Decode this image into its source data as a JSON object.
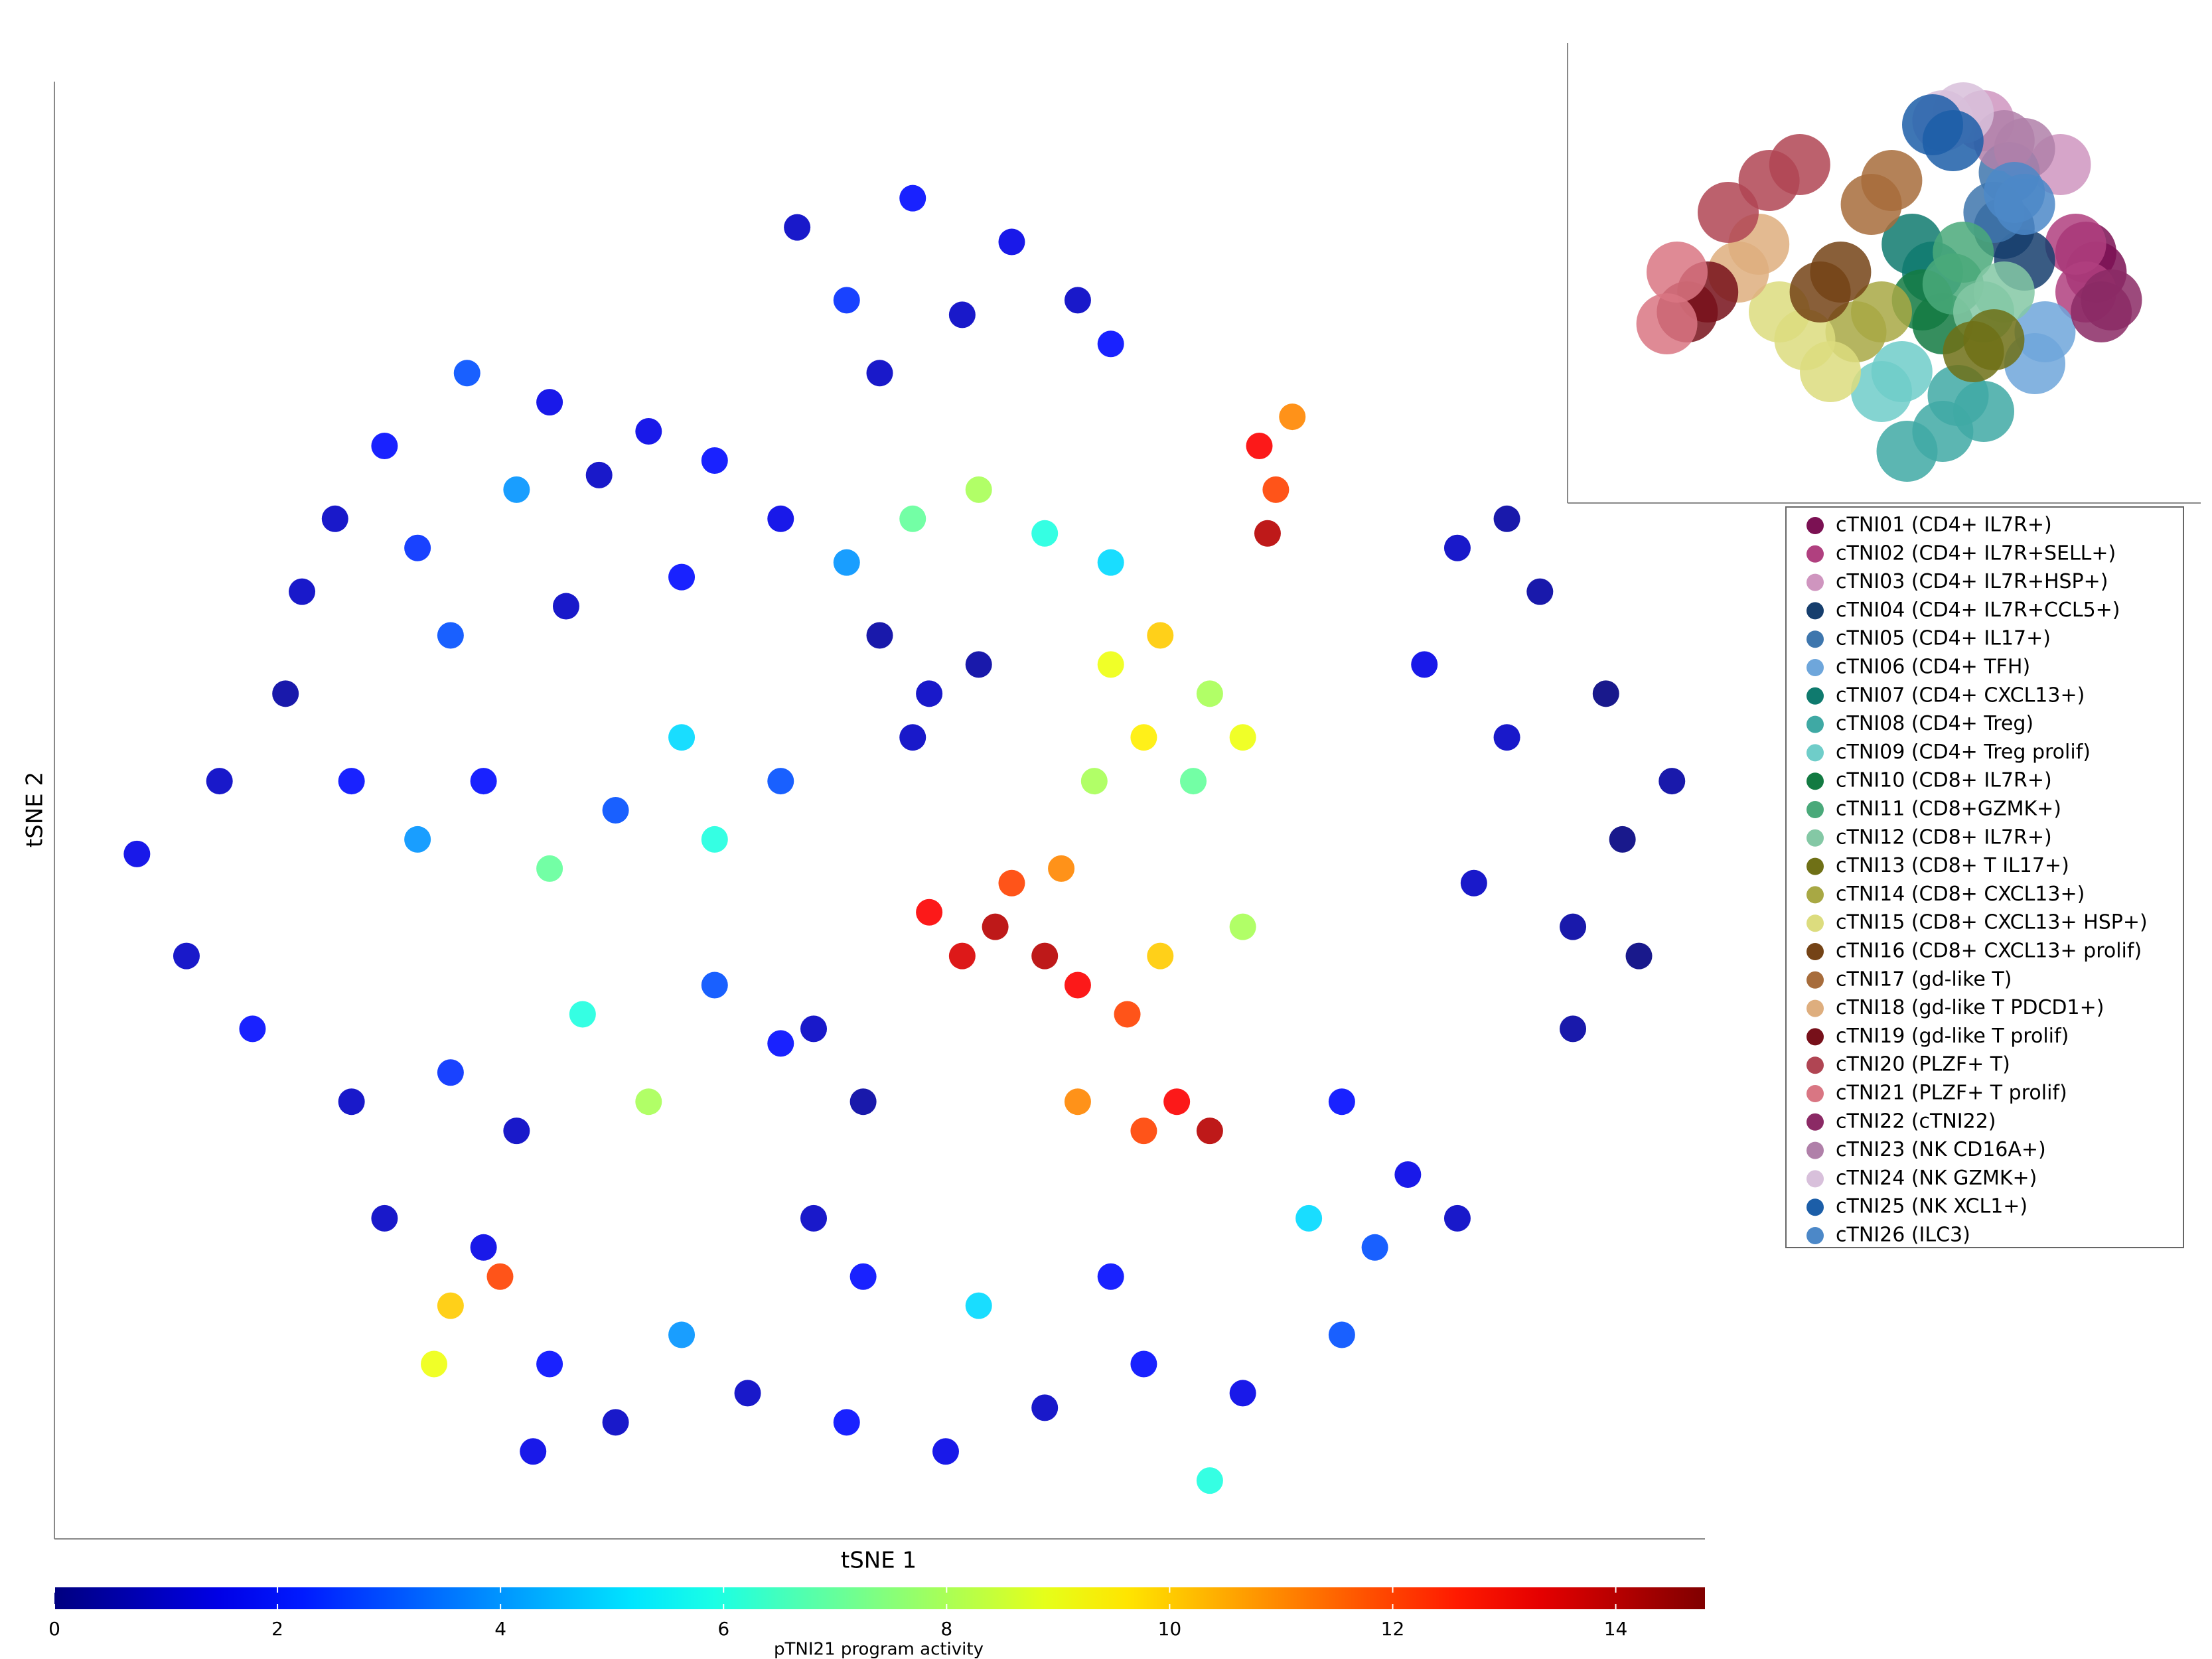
{
  "chart_data": [
    {
      "type": "scatter",
      "x_label": "tSNE 1",
      "y_label": "tSNE 2",
      "xlim": [
        0,
        100
      ],
      "ylim": [
        0,
        100
      ],
      "x": [
        45,
        52,
        58,
        62,
        48,
        55,
        64,
        50,
        20,
        25,
        30,
        17,
        22,
        28,
        33,
        36,
        40,
        15,
        24,
        31,
        38,
        44,
        52,
        56,
        60,
        64,
        48,
        73,
        74,
        75,
        73.5,
        50,
        53,
        56,
        52,
        64,
        67,
        70,
        66,
        63,
        69,
        72,
        53,
        57,
        60,
        62,
        58,
        55,
        65,
        62,
        66,
        68,
        70,
        61,
        67,
        72,
        85,
        88,
        90,
        94,
        98,
        95,
        88,
        83,
        92,
        96,
        86,
        92,
        78,
        82,
        80,
        85,
        76,
        10,
        5,
        14,
        18,
        22,
        26,
        30,
        34,
        38,
        40,
        44,
        8,
        12,
        18,
        24,
        28,
        32,
        36,
        40,
        44,
        20,
        26,
        46,
        49,
        46,
        49,
        42,
        48,
        54,
        60,
        66,
        72,
        78,
        56,
        64,
        38,
        70,
        24,
        27,
        23,
        30,
        34,
        29
      ],
      "y": [
        90,
        92,
        89,
        85,
        85,
        84,
        82,
        80,
        75,
        80,
        78,
        70,
        68,
        72,
        73,
        76,
        74,
        65,
        62,
        64,
        66,
        70,
        70,
        72,
        69,
        67,
        67,
        75,
        72,
        77,
        69,
        62,
        58,
        60,
        55,
        60,
        62,
        58,
        55,
        52,
        52,
        55,
        43,
        42,
        40,
        38,
        45,
        40,
        36,
        30,
        28,
        30,
        28,
        46,
        40,
        42,
        68,
        70,
        65,
        58,
        52,
        48,
        55,
        60,
        42,
        40,
        45,
        35,
        30,
        25,
        20,
        22,
        22,
        52,
        47,
        58,
        52,
        48,
        52,
        46,
        50,
        55,
        48,
        52,
        40,
        35,
        30,
        32,
        28,
        36,
        30,
        38,
        34,
        22,
        20,
        35,
        30,
        22,
        18,
        10,
        8,
        6,
        9,
        12,
        10,
        14,
        16,
        18,
        14,
        4,
        16,
        18,
        12,
        12,
        8,
        6
      ],
      "values": [
        1,
        2,
        1.5,
        1,
        2.5,
        1,
        2,
        1,
        2,
        3,
        1.5,
        1,
        2.5,
        4,
        1,
        1.5,
        2,
        1,
        3,
        1,
        2,
        1.5,
        7,
        8,
        6,
        5,
        4,
        13,
        12,
        11,
        14,
        0.5,
        1,
        0.5,
        1,
        9,
        10,
        8,
        9.5,
        8,
        7,
        9,
        13,
        14,
        14,
        13,
        12,
        13.5,
        12,
        11,
        12,
        13,
        14,
        11,
        10,
        8,
        1,
        0.5,
        0.5,
        0,
        0.5,
        0,
        1,
        1.5,
        0.5,
        0,
        1,
        0.5,
        2,
        1.5,
        3,
        1,
        5,
        1,
        1.5,
        0.5,
        2,
        4,
        2,
        7,
        3,
        5,
        6,
        3,
        1,
        2,
        1,
        2.5,
        1,
        6,
        8,
        3,
        2,
        1,
        1.5,
        1,
        0.5,
        1,
        2,
        1,
        2,
        1.5,
        1,
        2,
        1.5,
        3,
        5,
        2,
        4,
        6,
        10,
        12,
        9,
        2,
        1,
        1.5
      ],
      "colorbar": {
        "label": "pTNI21 program activity",
        "colormap": "jet",
        "lim": [
          0,
          14.8
        ],
        "ticks": [
          0,
          2,
          4,
          6,
          8,
          10,
          12,
          14
        ]
      }
    },
    {
      "type": "scatter",
      "xlim": [
        0,
        100
      ],
      "ylim": [
        0,
        100
      ],
      "series": [
        {
          "name": "cTNI01 (CD4+ IL7R+)",
          "color": "#7b1153",
          "x": [
            92,
            90
          ],
          "y": [
            55,
            60
          ]
        },
        {
          "name": "cTNI02 (CD4+ IL7R+SELL+)",
          "color": "#b0407f",
          "x": [
            90,
            88
          ],
          "y": [
            50,
            62
          ]
        },
        {
          "name": "cTNI03 (CD4+ IL7R+HSP+)",
          "color": "#cf95bf",
          "x": [
            85,
            70
          ],
          "y": [
            82,
            93
          ]
        },
        {
          "name": "cTNI04 (CD4+ IL7R+CCL5+)",
          "color": "#163e6d",
          "x": [
            78,
            74
          ],
          "y": [
            58,
            66
          ]
        },
        {
          "name": "cTNI05 (CD4+ IL17+)",
          "color": "#3e76ad",
          "x": [
            75,
            72
          ],
          "y": [
            80,
            70
          ]
        },
        {
          "name": "cTNI06 (CD4+ TFH)",
          "color": "#6ea6db",
          "x": [
            82,
            80
          ],
          "y": [
            40,
            32
          ]
        },
        {
          "name": "cTNI07 (CD4+ CXCL13+)",
          "color": "#0f7a6e",
          "x": [
            60,
            56
          ],
          "y": [
            55,
            62
          ]
        },
        {
          "name": "cTNI08 (CD4+ Treg)",
          "color": "#3fa9a4",
          "x": [
            62,
            55,
            70,
            65
          ],
          "y": [
            15,
            10,
            20,
            24
          ]
        },
        {
          "name": "cTNI09 (CD4+ Treg prolif)",
          "color": "#6fcdc9",
          "x": [
            50,
            54
          ],
          "y": [
            25,
            30
          ]
        },
        {
          "name": "cTNI10 (CD8+ IL7R+)",
          "color": "#137a42",
          "x": [
            58,
            62
          ],
          "y": [
            48,
            42
          ]
        },
        {
          "name": "cTNI11 (CD8+GZMK+)",
          "color": "#4aa97a",
          "x": [
            66,
            64
          ],
          "y": [
            60,
            52
          ]
        },
        {
          "name": "cTNI12 (CD8+ IL7R+)",
          "color": "#84c8a5",
          "x": [
            70,
            74
          ],
          "y": [
            45,
            50
          ]
        },
        {
          "name": "cTNI13 (CD8+ T IL17+)",
          "color": "#6f7016",
          "x": [
            68,
            72
          ],
          "y": [
            35,
            38
          ]
        },
        {
          "name": "cTNI14 (CD8+ CXCL13+)",
          "color": "#a8a844",
          "x": [
            45,
            50
          ],
          "y": [
            40,
            45
          ]
        },
        {
          "name": "cTNI15 (CD8+ CXCL13+ HSP+)",
          "color": "#dcdc7e",
          "x": [
            35,
            40,
            30
          ],
          "y": [
            38,
            30,
            45
          ]
        },
        {
          "name": "cTNI16 (CD8+ CXCL13+ prolif)",
          "color": "#744316",
          "x": [
            38,
            42
          ],
          "y": [
            50,
            55
          ]
        },
        {
          "name": "cTNI17 (gd-like T)",
          "color": "#a76c3b",
          "x": [
            48,
            52
          ],
          "y": [
            72,
            78
          ]
        },
        {
          "name": "cTNI18 (gd-like T PDCD1+)",
          "color": "#deae7e",
          "x": [
            22,
            26
          ],
          "y": [
            55,
            62
          ]
        },
        {
          "name": "cTNI19 (gd-like T prolif)",
          "color": "#77101a",
          "x": [
            12,
            16
          ],
          "y": [
            45,
            50
          ]
        },
        {
          "name": "cTNI20 (PLZF+ T)",
          "color": "#b04553",
          "x": [
            28,
            20,
            34
          ],
          "y": [
            78,
            70,
            82
          ]
        },
        {
          "name": "cTNI21 (PLZF+ T prolif)",
          "color": "#d97683",
          "x": [
            8,
            10
          ],
          "y": [
            42,
            55
          ]
        },
        {
          "name": "cTNI22 (cTNI22)",
          "color": "#8b2a65",
          "x": [
            95,
            93
          ],
          "y": [
            48,
            45
          ]
        },
        {
          "name": "cTNI23 (NK CD16A+)",
          "color": "#b080a9",
          "x": [
            74,
            78
          ],
          "y": [
            88,
            86
          ]
        },
        {
          "name": "cTNI24 (NK GZMK+)",
          "color": "#d8c0db",
          "x": [
            66,
            62
          ],
          "y": [
            95,
            93
          ]
        },
        {
          "name": "cTNI25 (NK XCL1+)",
          "color": "#1c5ea8",
          "x": [
            60,
            64
          ],
          "y": [
            92,
            88
          ]
        },
        {
          "name": "cTNI26 (ILC3)",
          "color": "#4c88c8",
          "x": [
            76,
            78
          ],
          "y": [
            75,
            72
          ]
        }
      ]
    }
  ]
}
